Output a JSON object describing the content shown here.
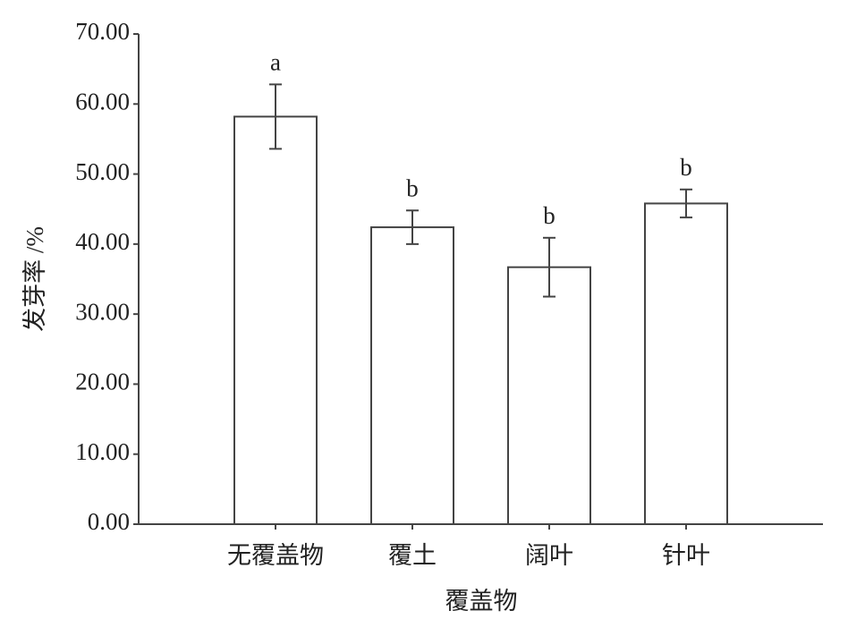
{
  "chart_data": {
    "type": "bar",
    "x_label": "覆盖物",
    "y_label": "发芽率 /%",
    "categories": [
      "无覆盖物",
      "覆土",
      "阔叶",
      "针叶"
    ],
    "values": [
      58.2,
      42.4,
      36.7,
      45.8
    ],
    "errors": [
      4.6,
      2.4,
      4.2,
      2.0
    ],
    "annotations": [
      "a",
      "b",
      "b",
      "b"
    ],
    "color": "#ffffff",
    "ylim": [
      0,
      70
    ],
    "yticks": [
      {
        "value": 0,
        "label": "0.00"
      },
      {
        "value": 10,
        "label": "10.00"
      },
      {
        "value": 20,
        "label": "20.00"
      },
      {
        "value": 30,
        "label": "30.00"
      },
      {
        "value": 40,
        "label": "40.00"
      },
      {
        "value": 50,
        "label": "50.00"
      },
      {
        "value": 60,
        "label": "60.00"
      },
      {
        "value": 70,
        "label": "70.00"
      }
    ],
    "grid": false
  }
}
